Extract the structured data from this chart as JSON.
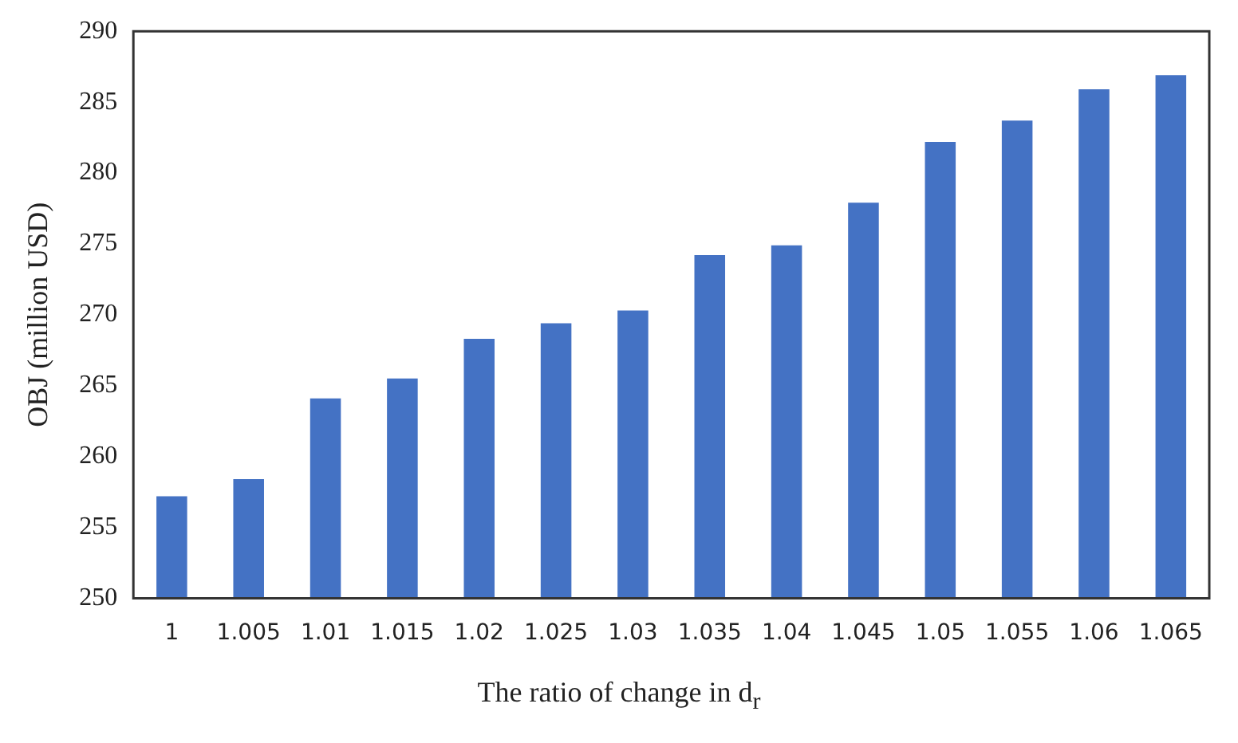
{
  "chart_data": {
    "type": "bar",
    "xlabel": "The ratio of  change in d$_{r}$",
    "ylabel": "OBJ (million USD)",
    "categories": [
      "1",
      "1.005",
      "1.01",
      "1.015",
      "1.02",
      "1.025",
      "1.03",
      "1.035",
      "1.04",
      "1.045",
      "1.05",
      "1.055",
      "1.06",
      "1.065"
    ],
    "values": [
      257.2,
      258.4,
      264.1,
      265.5,
      268.3,
      269.4,
      270.3,
      274.2,
      274.9,
      277.9,
      282.2,
      283.7,
      285.9,
      286.9
    ],
    "color": "#4472c4",
    "ylim": [
      250,
      290
    ],
    "yticks": [
      250,
      255,
      260,
      265,
      270,
      275,
      280,
      285,
      290
    ],
    "grid": false,
    "legend": false
  }
}
